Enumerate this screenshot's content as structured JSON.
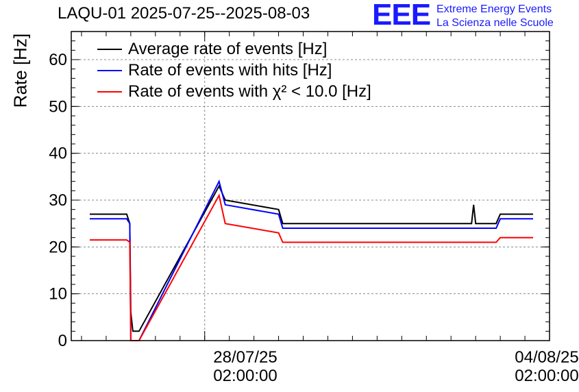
{
  "header": {
    "title": "LAQU-01 2025-07-25--2025-08-03",
    "logo": "EEE",
    "logo_line1": "Extreme Energy Events",
    "logo_line2": "La Scienza nelle Scuole"
  },
  "chart_data": {
    "type": "line",
    "title": "LAQU-01 2025-07-25--2025-08-03",
    "ylabel": "Rate [Hz]",
    "xlabel": "",
    "ylim": [
      0,
      66
    ],
    "yticks": [
      0,
      10,
      20,
      30,
      40,
      50,
      60
    ],
    "xlim_days": [
      "2025-07-25T09:00",
      "2025-08-04T02:00"
    ],
    "xticks": [
      {
        "line1": "28/07/25",
        "line2": "02:00:00"
      },
      {
        "line1": "04/08/25",
        "line2": "02:00:00"
      }
    ],
    "grid": true,
    "legend_position": "top-left",
    "series": [
      {
        "name": "Average rate of events [Hz]",
        "color": "#000000",
        "points": [
          [
            "2025-07-25T18:00",
            27
          ],
          [
            "2025-07-26T12:00",
            27
          ],
          [
            "2025-07-26T13:30",
            25
          ],
          [
            "2025-07-26T14:00",
            6
          ],
          [
            "2025-07-26T15:00",
            2
          ],
          [
            "2025-07-26T18:00",
            2
          ],
          [
            "2025-07-28T09:00",
            33
          ],
          [
            "2025-07-28T12:00",
            30
          ],
          [
            "2025-07-29T14:00",
            28
          ],
          [
            "2025-07-29T16:00",
            25
          ],
          [
            "2025-08-02T12:00",
            25
          ],
          [
            "2025-08-02T13:00",
            29
          ],
          [
            "2025-08-02T14:00",
            25
          ],
          [
            "2025-08-03T00:00",
            25
          ],
          [
            "2025-08-03T02:00",
            27
          ],
          [
            "2025-08-03T18:00",
            27
          ]
        ]
      },
      {
        "name": "Rate of events with hits [Hz]",
        "color": "#0000ff",
        "points": [
          [
            "2025-07-25T18:00",
            26
          ],
          [
            "2025-07-26T12:00",
            26
          ],
          [
            "2025-07-26T13:30",
            25
          ],
          [
            "2025-07-26T14:00",
            0
          ],
          [
            "2025-07-26T18:00",
            0
          ],
          [
            "2025-07-28T09:00",
            34
          ],
          [
            "2025-07-28T12:00",
            29
          ],
          [
            "2025-07-29T14:00",
            27
          ],
          [
            "2025-07-29T16:00",
            24
          ],
          [
            "2025-08-03T00:00",
            24
          ],
          [
            "2025-08-03T02:00",
            26
          ],
          [
            "2025-08-03T18:00",
            26
          ]
        ]
      },
      {
        "name": "Rate of events with χ² < 10.0 [Hz]",
        "color": "#ff0000",
        "points": [
          [
            "2025-07-25T18:00",
            21.5
          ],
          [
            "2025-07-26T12:00",
            21.5
          ],
          [
            "2025-07-26T13:30",
            21
          ],
          [
            "2025-07-26T14:00",
            0
          ],
          [
            "2025-07-26T18:00",
            0
          ],
          [
            "2025-07-28T09:00",
            31
          ],
          [
            "2025-07-28T12:00",
            25
          ],
          [
            "2025-07-29T14:00",
            23
          ],
          [
            "2025-07-29T16:00",
            21
          ],
          [
            "2025-08-03T00:00",
            21
          ],
          [
            "2025-08-03T02:00",
            22
          ],
          [
            "2025-08-03T18:00",
            22
          ]
        ]
      }
    ]
  }
}
